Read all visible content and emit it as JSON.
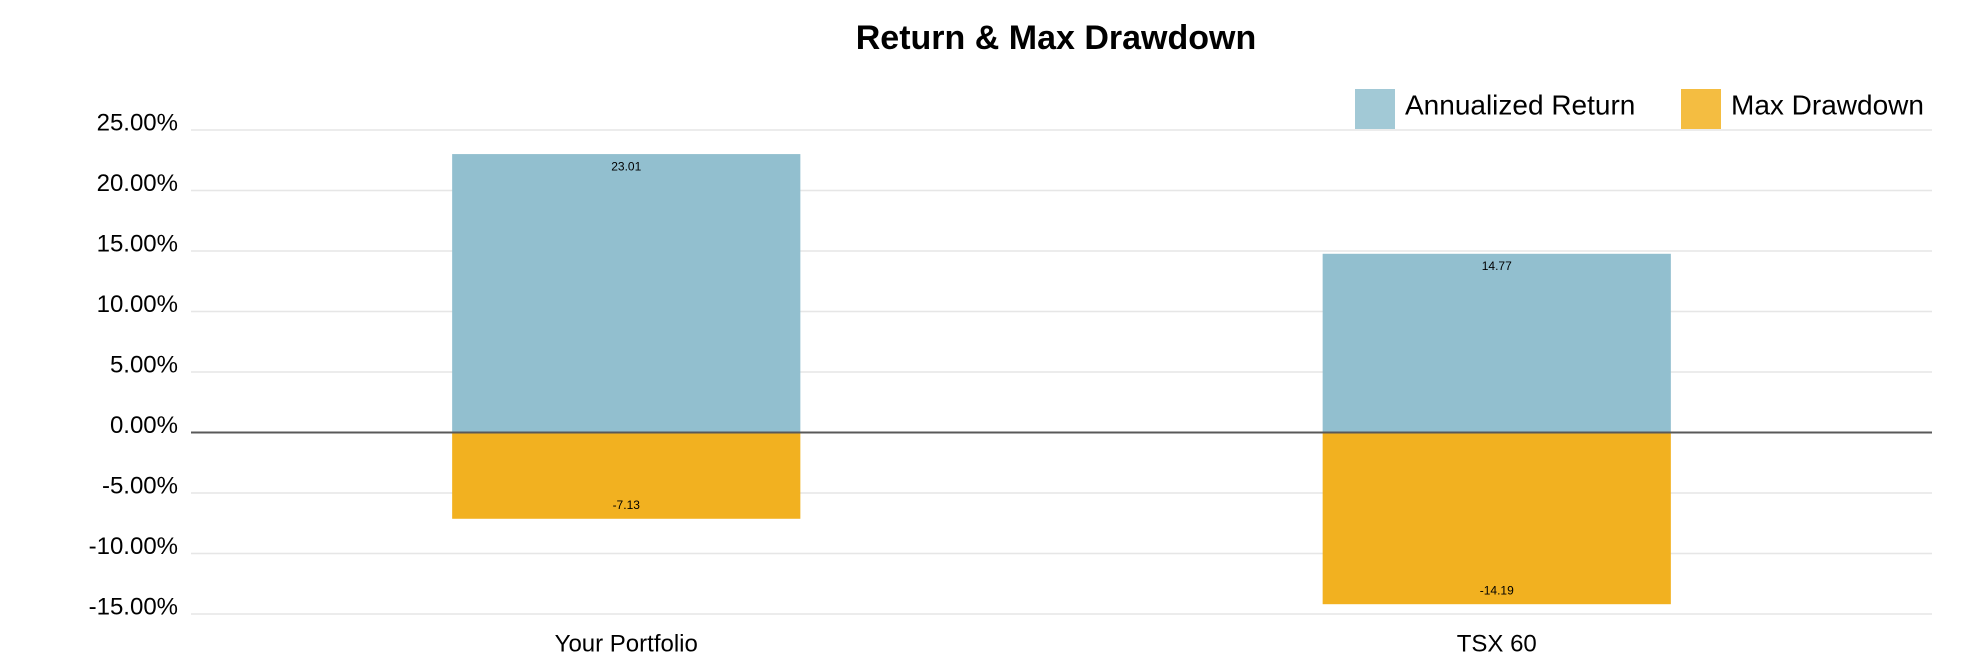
{
  "chart_data": {
    "type": "bar",
    "title": "Return & Max Drawdown",
    "categories": [
      "Your Portfolio",
      "TSX 60"
    ],
    "series": [
      {
        "name": "Annualized Return",
        "color": "#92bfcf",
        "values": [
          23.01,
          14.77
        ]
      },
      {
        "name": "Max Drawdown",
        "color": "#f2b120",
        "values": [
          -7.13,
          -14.19
        ]
      }
    ],
    "ylim": [
      -15,
      25
    ],
    "yticks": [
      {
        "value": -15,
        "label": "-15.00%"
      },
      {
        "value": -10,
        "label": "-10.00%"
      },
      {
        "value": -5,
        "label": "-5.00%"
      },
      {
        "value": 0,
        "label": "0.00%"
      },
      {
        "value": 5,
        "label": "5.00%"
      },
      {
        "value": 10,
        "label": "10.00%"
      },
      {
        "value": 15,
        "label": "15.00%"
      },
      {
        "value": 20,
        "label": "20.00%"
      },
      {
        "value": 25,
        "label": "25.00%"
      }
    ],
    "grid": true,
    "legend": "top-right",
    "stacked": true
  }
}
